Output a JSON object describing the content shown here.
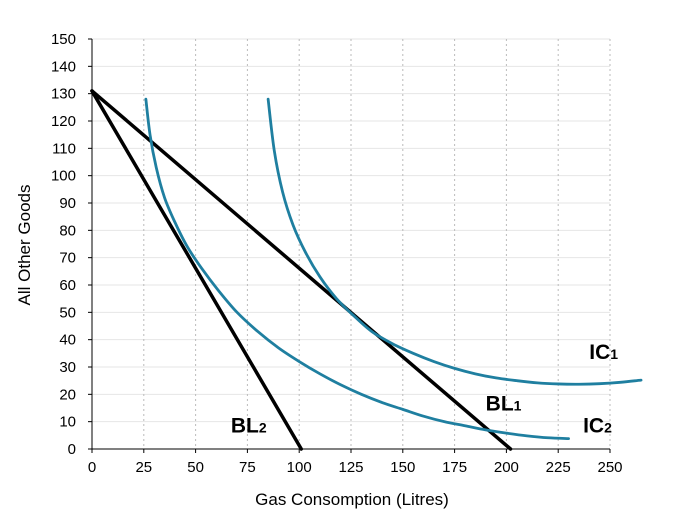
{
  "chart_data": {
    "type": "line",
    "xlabel": "Gas Consomption (Litres)",
    "ylabel": "All Other Goods",
    "xlim": [
      0,
      250
    ],
    "ylim": [
      0,
      150
    ],
    "x_ticks": [
      "0",
      "25",
      "50",
      "75",
      "100",
      "125",
      "150",
      "175",
      "200",
      "225",
      "250"
    ],
    "y_ticks": [
      "0",
      "10",
      "20",
      "30",
      "40",
      "50",
      "60",
      "70",
      "80",
      "90",
      "100",
      "110",
      "120",
      "130",
      "140",
      "150"
    ],
    "grid": "vertical dotted",
    "colors": {
      "budget_line": "#000000",
      "indifference_curve": "#1f7fa0",
      "grid": "#bbbbbb"
    },
    "series": [
      {
        "name": "BL1",
        "label_main": "BL",
        "label_sub": "1",
        "kind": "budget",
        "x": [
          0,
          202
        ],
        "y": [
          131,
          0
        ]
      },
      {
        "name": "BL2",
        "label_main": "BL",
        "label_sub": "2",
        "kind": "budget",
        "x": [
          0,
          101
        ],
        "y": [
          131,
          0
        ]
      },
      {
        "name": "IC1",
        "label_main": "IC",
        "label_sub": "1",
        "kind": "indifference",
        "x": [
          85,
          88,
          92,
          97,
          103,
          110,
          118,
          126,
          135,
          145,
          155,
          165,
          175,
          185,
          195,
          205,
          215,
          225,
          235,
          245,
          255,
          265
        ],
        "y": [
          128,
          109,
          94,
          82,
          72,
          63,
          55,
          49,
          43,
          38.5,
          35,
          32,
          29.5,
          27.5,
          26,
          25,
          24.2,
          23.8,
          23.7,
          23.9,
          24.4,
          25.2
        ]
      },
      {
        "name": "IC2",
        "label_main": "IC",
        "label_sub": "2",
        "kind": "indifference",
        "x": [
          26,
          28,
          31,
          35,
          40,
          46,
          53,
          61,
          70,
          80,
          90,
          100,
          110,
          120,
          130,
          140,
          150,
          160,
          170,
          180,
          190,
          200,
          210,
          220,
          230
        ],
        "y": [
          128,
          115,
          103,
          92,
          83,
          74,
          66,
          58,
          50,
          43,
          37,
          32,
          27.5,
          23.5,
          20,
          17,
          14.5,
          12,
          10,
          8.5,
          7,
          5.8,
          4.8,
          4.1,
          3.8
        ]
      }
    ],
    "annotations": [
      {
        "series": "IC1",
        "x": 240,
        "y": 33
      },
      {
        "series": "BL1",
        "x": 190,
        "y": 14
      },
      {
        "series": "IC2",
        "x": 237,
        "y": 6
      },
      {
        "series": "BL2",
        "x": 67,
        "y": 6
      }
    ]
  }
}
